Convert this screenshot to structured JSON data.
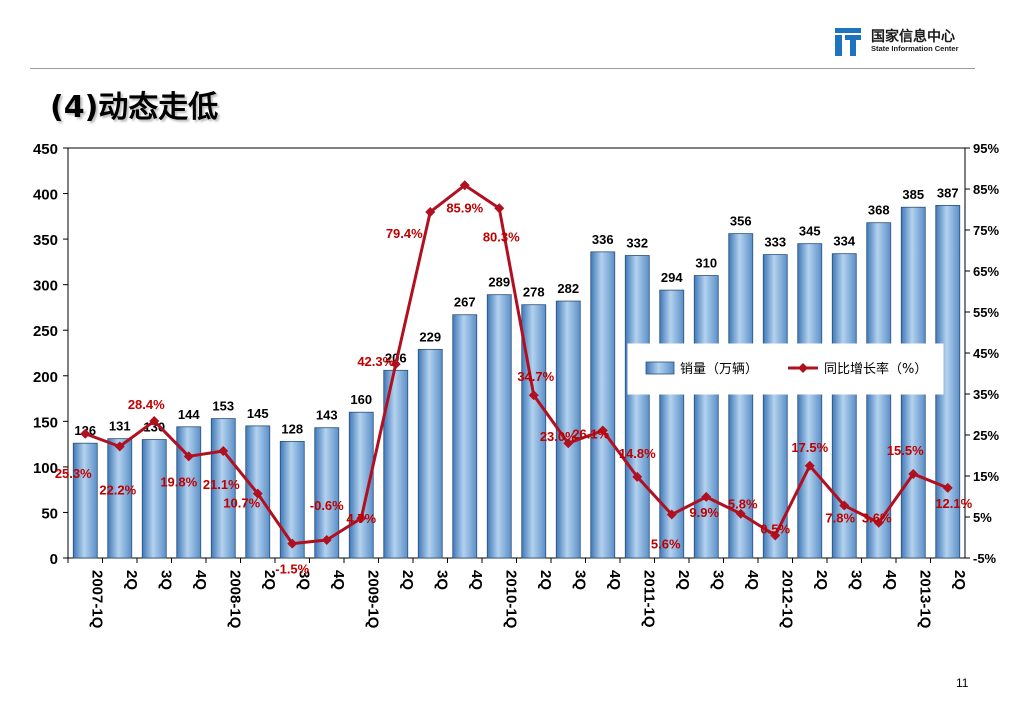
{
  "header": {
    "logo_cn": "国家信息中心",
    "logo_en": "State Information Center"
  },
  "title": "(4)动态走低",
  "page_number": "11",
  "colors": {
    "bar_fill": "#7aa7d6",
    "line": "#b01020",
    "label_red": "#c00000"
  },
  "chart_data": {
    "type": "bar",
    "categories": [
      "2007-1Q",
      "2Q",
      "3Q",
      "4Q",
      "2008-1Q",
      "2Q",
      "3Q",
      "4Q",
      "2009-1Q",
      "2Q",
      "3Q",
      "4Q",
      "2010-1Q",
      "2Q",
      "3Q",
      "4Q",
      "2011-1Q",
      "2Q",
      "3Q",
      "4Q",
      "2012-1Q",
      "2Q",
      "3Q",
      "4Q",
      "2013-1Q",
      "2Q"
    ],
    "series": [
      {
        "name": "销量（万辆）",
        "type": "bar",
        "axis": "left",
        "values": [
          126,
          131,
          130,
          144,
          153,
          145,
          128,
          143,
          160,
          206,
          229,
          267,
          289,
          278,
          282,
          336,
          332,
          294,
          310,
          356,
          333,
          345,
          334,
          368,
          385,
          387
        ],
        "labels": [
          "126",
          "131",
          "130",
          "144",
          "153",
          "145",
          "128",
          "143",
          "160",
          "206",
          "229",
          "267",
          "289",
          "278",
          "282",
          "336",
          "332",
          "294",
          "310",
          "356",
          "333",
          "345",
          "334",
          "368",
          "385",
          "387"
        ]
      },
      {
        "name": "同比增长率（%）",
        "type": "line",
        "axis": "right",
        "values": [
          25.3,
          22.2,
          28.4,
          19.8,
          21.1,
          10.7,
          -1.5,
          -0.6,
          4.7,
          42.3,
          79.4,
          85.9,
          80.3,
          34.7,
          23.0,
          26.1,
          14.8,
          5.6,
          9.9,
          5.8,
          0.5,
          17.5,
          7.8,
          3.6,
          15.5,
          12.1
        ],
        "labels": [
          "25.3%",
          "22.2%",
          "28.4%",
          "19.8%",
          "21.1%",
          "10.7%",
          "-1.5%",
          "-0.6%",
          "4.7%",
          "42.3%",
          "79.4%",
          "85.9%",
          "80.3%",
          "34.7%",
          "23.0%",
          "26.1%",
          "14.8%",
          "5.6%",
          "9.9%",
          "5.8%",
          "0.5%",
          "17.5%",
          "7.8%",
          "3.6%",
          "15.5%",
          "12.1%"
        ]
      }
    ],
    "y_left": {
      "range": [
        0,
        450
      ],
      "ticks": [
        "0",
        "50",
        "100",
        "150",
        "200",
        "250",
        "300",
        "350",
        "400",
        "450"
      ]
    },
    "y_right": {
      "range": [
        -5,
        95
      ],
      "ticks": [
        "-5%",
        "5%",
        "15%",
        "25%",
        "35%",
        "45%",
        "55%",
        "65%",
        "75%",
        "85%",
        "95%"
      ]
    },
    "legend": {
      "position": "right-middle",
      "entries": [
        "销量（万辆）",
        "同比增长率（%）"
      ]
    },
    "grid": false
  }
}
